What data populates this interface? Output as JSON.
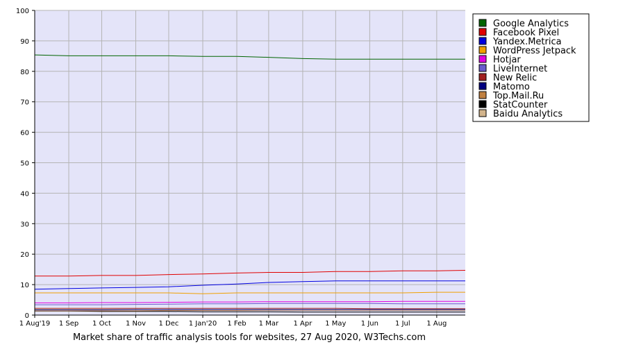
{
  "chart_data": {
    "type": "line",
    "title": "Market share of traffic analysis tools for websites, 27 Aug 2020, W3Techs.com",
    "xlabel": "",
    "ylabel": "",
    "ylim": [
      0,
      100
    ],
    "yticks": [
      0,
      10,
      20,
      30,
      40,
      50,
      60,
      70,
      80,
      90,
      100
    ],
    "x_tick_labels": [
      "1 Aug'19",
      "1 Sep",
      "1 Oct",
      "1 Nov",
      "1 Dec",
      "1 Jan'20",
      "1 Feb",
      "1 Mar",
      "1 Apr",
      "1 May",
      "1 Jun",
      "1 Jul",
      "1 Aug"
    ],
    "x_range": [
      "2019-08-01",
      "2020-08-27"
    ],
    "grid": true,
    "legend_position": "right",
    "plot_background": "#e4e4f9",
    "x": [
      "2019-08-01",
      "2019-09-01",
      "2019-10-01",
      "2019-11-01",
      "2019-12-01",
      "2020-01-01",
      "2020-02-01",
      "2020-03-01",
      "2020-04-01",
      "2020-05-01",
      "2020-06-01",
      "2020-07-01",
      "2020-08-01",
      "2020-08-27"
    ],
    "series": [
      {
        "name": "Google Analytics",
        "color": "#006400",
        "values": [
          85.4,
          85.1,
          85.1,
          85.1,
          85.1,
          84.9,
          84.9,
          84.6,
          84.2,
          84.0,
          84.0,
          84.0,
          84.0,
          84.0
        ]
      },
      {
        "name": "Facebook Pixel",
        "color": "#e00000",
        "values": [
          12.8,
          12.8,
          13.0,
          13.0,
          13.3,
          13.5,
          13.8,
          14.0,
          14.0,
          14.3,
          14.3,
          14.5,
          14.5,
          14.7
        ]
      },
      {
        "name": "Yandex.Metrica",
        "color": "#0000e0",
        "values": [
          8.5,
          8.7,
          8.9,
          9.1,
          9.3,
          9.8,
          10.2,
          10.7,
          11.0,
          11.2,
          11.2,
          11.2,
          11.2,
          11.2
        ]
      },
      {
        "name": "WordPress Jetpack",
        "color": "#f0a000",
        "values": [
          7.3,
          7.3,
          7.3,
          7.3,
          7.3,
          7.0,
          7.3,
          7.3,
          7.3,
          7.3,
          7.3,
          7.3,
          7.5,
          7.5
        ]
      },
      {
        "name": "Hotjar",
        "color": "#e000e0",
        "values": [
          4.0,
          4.0,
          4.1,
          4.1,
          4.2,
          4.3,
          4.3,
          4.4,
          4.4,
          4.4,
          4.4,
          4.5,
          4.5,
          4.5
        ]
      },
      {
        "name": "LiveInternet",
        "color": "#6a5acd",
        "values": [
          3.4,
          3.4,
          3.4,
          3.5,
          3.6,
          3.7,
          3.7,
          3.8,
          3.8,
          3.8,
          3.8,
          3.7,
          3.7,
          3.7
        ]
      },
      {
        "name": "New Relic",
        "color": "#a02020",
        "values": [
          2.2,
          2.2,
          2.2,
          2.2,
          2.2,
          2.2,
          2.2,
          2.2,
          2.2,
          2.2,
          2.1,
          2.1,
          2.1,
          2.1
        ]
      },
      {
        "name": "Matomo",
        "color": "#000080",
        "values": [
          1.7,
          1.7,
          1.7,
          1.8,
          1.8,
          1.8,
          1.8,
          1.8,
          1.8,
          1.8,
          1.8,
          1.8,
          1.8,
          1.8
        ]
      },
      {
        "name": "Top.Mail.Ru",
        "color": "#c08040",
        "values": [
          1.4,
          1.4,
          1.4,
          1.4,
          1.5,
          1.5,
          1.5,
          1.6,
          1.6,
          1.6,
          1.6,
          1.6,
          1.6,
          1.6
        ]
      },
      {
        "name": "StatCounter",
        "color": "#000000",
        "values": [
          1.3,
          1.3,
          1.2,
          1.2,
          1.2,
          1.1,
          1.1,
          1.1,
          1.0,
          1.0,
          1.0,
          1.0,
          1.0,
          1.0
        ]
      },
      {
        "name": "Baidu Analytics",
        "color": "#d2b48c",
        "values": [
          1.9,
          1.9,
          1.9,
          1.9,
          1.8,
          1.8,
          1.8,
          1.8,
          1.7,
          1.7,
          1.6,
          1.6,
          1.6,
          1.6
        ]
      }
    ]
  }
}
